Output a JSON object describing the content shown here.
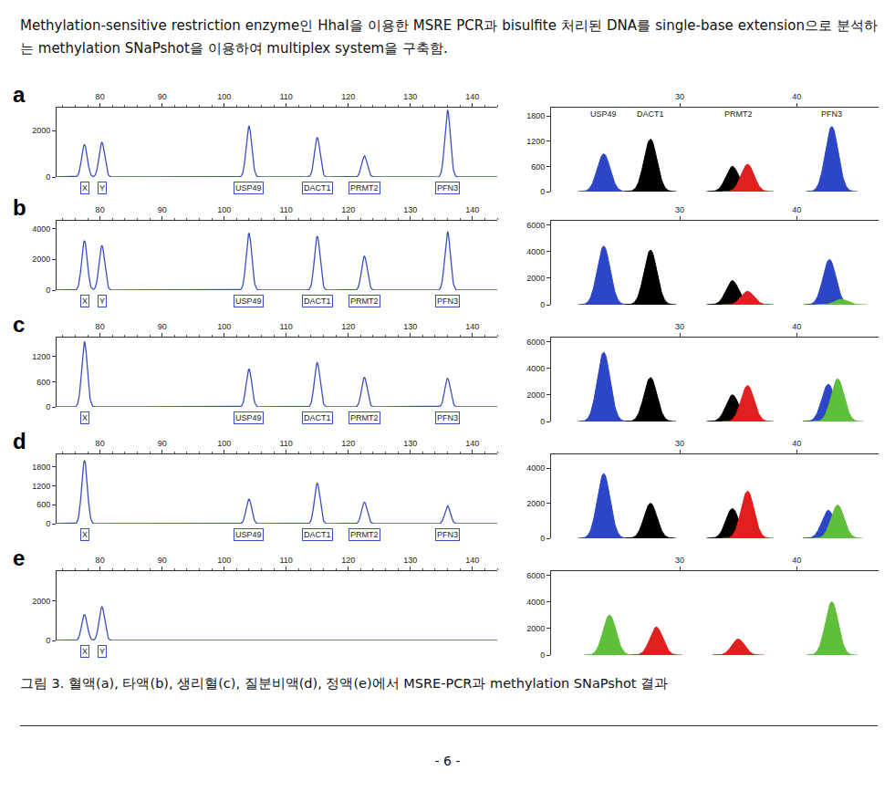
{
  "header": "Methylation-sensitive restriction enzyme인 HhaI을 이용한 MSRE PCR과 bisulfite 처리된 DNA를 single-base extension으로 분석하는 methylation SNaPshot을 이용하여 multiplex system을 구축함.",
  "caption": "그림 3. 혈액(a), 타액(b), 생리혈(c), 질분비액(d), 정액(e)에서 MSRE-PCR과 methylation SNaPshot 결과",
  "page_number": "- 6 -",
  "chart_data": [
    {
      "type": "line",
      "panel": "a",
      "color": "#3a4fc0",
      "xlim": [
        73,
        144
      ],
      "xticks": [
        80,
        90,
        100,
        110,
        120,
        130,
        140
      ],
      "ylim": [
        0,
        3000
      ],
      "yticks": [
        0,
        2000
      ],
      "peaks": [
        {
          "x": 77.5,
          "height": 1400,
          "label": "X"
        },
        {
          "x": 80.3,
          "height": 1500,
          "label": "Y"
        },
        {
          "x": 104,
          "height": 2200,
          "label": "USP49"
        },
        {
          "x": 115,
          "height": 1700,
          "label": "DACT1"
        },
        {
          "x": 122.6,
          "height": 900,
          "label": "PRMT2"
        },
        {
          "x": 136,
          "height": 2900,
          "label": "PFN3"
        }
      ]
    },
    {
      "type": "area",
      "xlim": [
        19,
        47
      ],
      "xticks": [
        30,
        40
      ],
      "ylim": [
        0,
        2000
      ],
      "yticks": [
        0,
        600,
        1200,
        1800
      ],
      "locus_labels": [
        {
          "x": 23.5,
          "text": "USP49"
        },
        {
          "x": 27.5,
          "text": "DACT1"
        },
        {
          "x": 35,
          "text": "PRMT2"
        },
        {
          "x": 43,
          "text": "PFN3"
        }
      ],
      "peaks": [
        {
          "x": 23.5,
          "height": 900,
          "color": "#2d46c8"
        },
        {
          "x": 27.5,
          "height": 1250,
          "color": "#000000"
        },
        {
          "x": 34.5,
          "height": 600,
          "color": "#000000"
        },
        {
          "x": 35.8,
          "height": 650,
          "color": "#e0201e"
        },
        {
          "x": 43,
          "height": 1550,
          "color": "#2d46c8"
        }
      ]
    },
    {
      "type": "line",
      "panel": "b",
      "color": "#3a4fc0",
      "xlim": [
        73,
        144
      ],
      "xticks": [
        80,
        90,
        100,
        110,
        120,
        130,
        140
      ],
      "ylim": [
        0,
        4500
      ],
      "yticks": [
        0,
        2000,
        4000
      ],
      "peaks": [
        {
          "x": 77.5,
          "height": 3200,
          "label": "X"
        },
        {
          "x": 80.3,
          "height": 2900,
          "label": "Y"
        },
        {
          "x": 104,
          "height": 3700,
          "label": "USP49"
        },
        {
          "x": 115,
          "height": 3500,
          "label": "DACT1"
        },
        {
          "x": 122.6,
          "height": 2200,
          "label": "PRMT2"
        },
        {
          "x": 136,
          "height": 3800,
          "label": "PFN3"
        }
      ]
    },
    {
      "type": "area",
      "xlim": [
        19,
        47
      ],
      "xticks": [
        30,
        40
      ],
      "ylim": [
        0,
        6300
      ],
      "yticks": [
        0,
        2000,
        4000,
        6000
      ],
      "peaks": [
        {
          "x": 23.5,
          "height": 4400,
          "color": "#2d46c8"
        },
        {
          "x": 27.5,
          "height": 4100,
          "color": "#000000"
        },
        {
          "x": 34.5,
          "height": 1800,
          "color": "#000000"
        },
        {
          "x": 35.8,
          "height": 1000,
          "color": "#e0201e"
        },
        {
          "x": 42.8,
          "height": 3400,
          "color": "#2d46c8"
        },
        {
          "x": 43.8,
          "height": 400,
          "color": "#5fbf3a"
        }
      ]
    },
    {
      "type": "line",
      "panel": "c",
      "color": "#3a4fc0",
      "xlim": [
        73,
        144
      ],
      "xticks": [
        80,
        90,
        100,
        110,
        120,
        130,
        140
      ],
      "ylim": [
        0,
        1650
      ],
      "yticks": [
        0,
        600,
        1200
      ],
      "peaks": [
        {
          "x": 77.5,
          "height": 1550,
          "label": "X"
        },
        {
          "x": 104,
          "height": 900,
          "label": "USP49"
        },
        {
          "x": 115,
          "height": 1050,
          "label": "DACT1"
        },
        {
          "x": 122.6,
          "height": 700,
          "label": "PRMT2"
        },
        {
          "x": 136,
          "height": 680,
          "label": "PFN3"
        }
      ]
    },
    {
      "type": "area",
      "xlim": [
        19,
        47
      ],
      "xticks": [
        30,
        40
      ],
      "ylim": [
        0,
        6300
      ],
      "yticks": [
        0,
        2000,
        4000,
        6000
      ],
      "peaks": [
        {
          "x": 23.5,
          "height": 5200,
          "color": "#2d46c8"
        },
        {
          "x": 27.5,
          "height": 3300,
          "color": "#000000"
        },
        {
          "x": 34.5,
          "height": 2000,
          "color": "#000000"
        },
        {
          "x": 35.8,
          "height": 2700,
          "color": "#e0201e"
        },
        {
          "x": 42.7,
          "height": 2800,
          "color": "#2d46c8"
        },
        {
          "x": 43.5,
          "height": 3200,
          "color": "#5fbf3a"
        }
      ]
    },
    {
      "type": "line",
      "panel": "d",
      "color": "#3a4fc0",
      "xlim": [
        73,
        144
      ],
      "xticks": [
        80,
        90,
        100,
        110,
        120,
        130,
        140
      ],
      "ylim": [
        0,
        2200
      ],
      "yticks": [
        0,
        600,
        1200,
        1800
      ],
      "peaks": [
        {
          "x": 77.5,
          "height": 2000,
          "label": "X"
        },
        {
          "x": 104,
          "height": 780,
          "label": "USP49"
        },
        {
          "x": 115,
          "height": 1280,
          "label": "DACT1"
        },
        {
          "x": 122.6,
          "height": 680,
          "label": "PRMT2"
        },
        {
          "x": 136,
          "height": 560,
          "label": "PFN3"
        }
      ]
    },
    {
      "type": "area",
      "xlim": [
        19,
        47
      ],
      "xticks": [
        30,
        40
      ],
      "ylim": [
        0,
        4800
      ],
      "yticks": [
        0,
        2000,
        4000
      ],
      "peaks": [
        {
          "x": 23.5,
          "height": 3700,
          "color": "#2d46c8"
        },
        {
          "x": 27.5,
          "height": 2000,
          "color": "#000000"
        },
        {
          "x": 34.5,
          "height": 1700,
          "color": "#000000"
        },
        {
          "x": 35.8,
          "height": 2700,
          "color": "#e0201e"
        },
        {
          "x": 42.7,
          "height": 1600,
          "color": "#2d46c8"
        },
        {
          "x": 43.5,
          "height": 1900,
          "color": "#5fbf3a"
        }
      ]
    },
    {
      "type": "line",
      "panel": "e",
      "color": "#3a4fc0",
      "xlim": [
        73,
        144
      ],
      "xticks": [
        80,
        90,
        100,
        110,
        120,
        130,
        140
      ],
      "ylim": [
        0,
        3500
      ],
      "yticks": [
        0,
        2000
      ],
      "peaks": [
        {
          "x": 77.5,
          "height": 1300,
          "label": "X"
        },
        {
          "x": 80.3,
          "height": 1700,
          "label": "Y"
        }
      ]
    },
    {
      "type": "area",
      "xlim": [
        19,
        47
      ],
      "xticks": [
        30,
        40
      ],
      "ylim": [
        0,
        6300
      ],
      "yticks": [
        0,
        2000,
        4000,
        6000
      ],
      "peaks": [
        {
          "x": 24,
          "height": 3000,
          "color": "#5fbf3a"
        },
        {
          "x": 28,
          "height": 2100,
          "color": "#e0201e"
        },
        {
          "x": 35,
          "height": 1200,
          "color": "#e0201e"
        },
        {
          "x": 43,
          "height": 4000,
          "color": "#5fbf3a"
        }
      ]
    }
  ]
}
